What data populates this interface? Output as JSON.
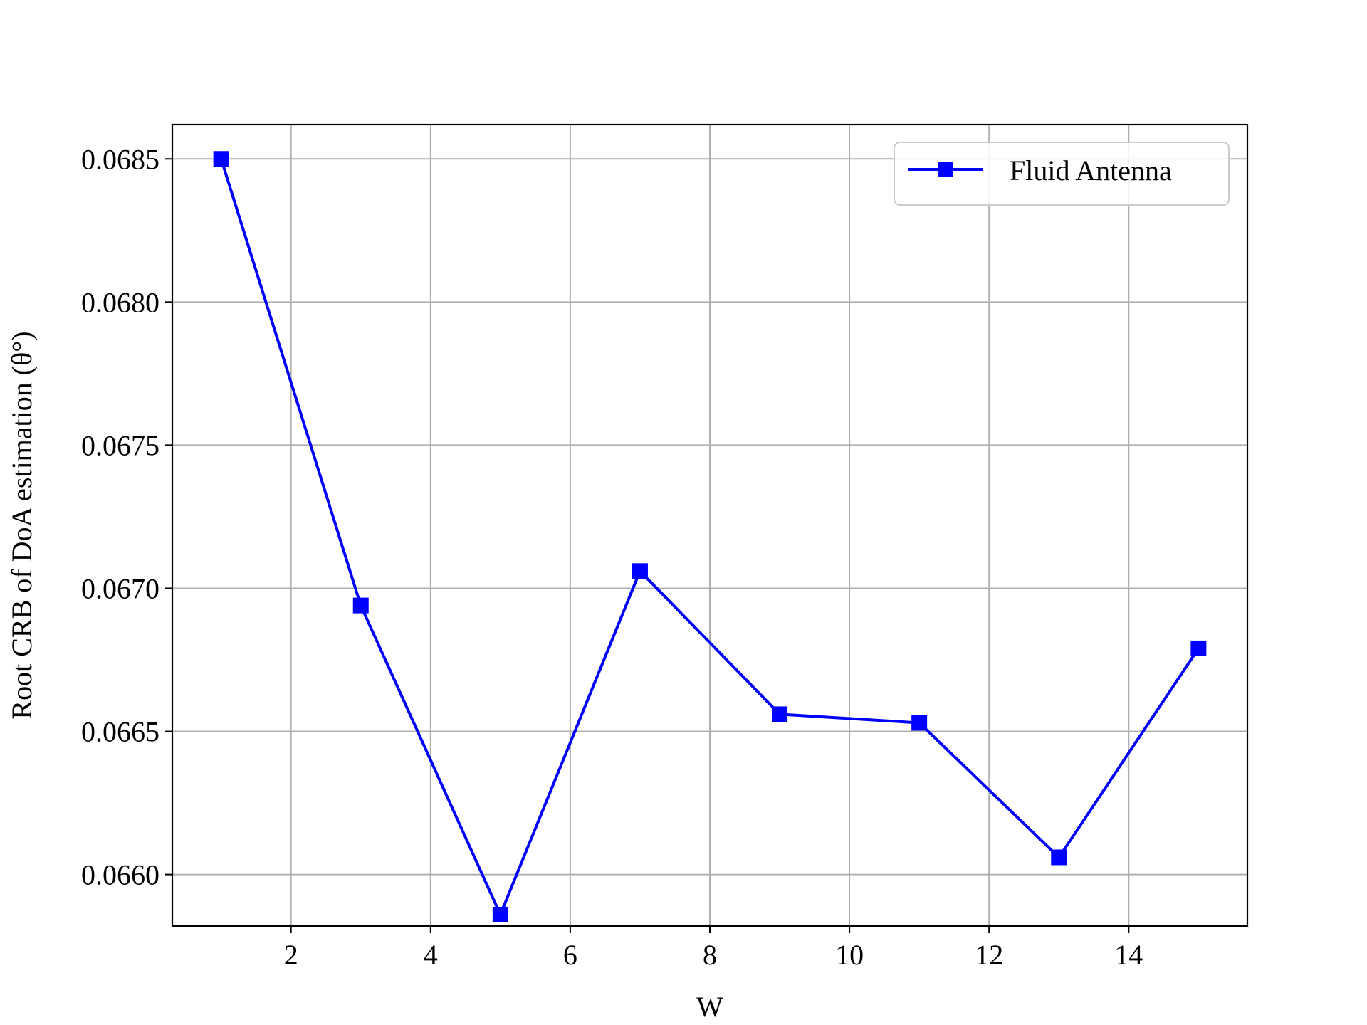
{
  "chart_data": {
    "type": "line",
    "title": "",
    "xlabel": "W",
    "ylabel": "Root CRB of DoA estimation (θ°)",
    "xlim": [
      0.3,
      15.7
    ],
    "ylim": [
      0.06582,
      0.06862
    ],
    "x_ticks": [
      2,
      4,
      6,
      8,
      10,
      12,
      14
    ],
    "x_tick_labels": [
      "2",
      "4",
      "6",
      "8",
      "10",
      "12",
      "14"
    ],
    "y_ticks": [
      0.066,
      0.0665,
      0.067,
      0.0675,
      0.068,
      0.0685
    ],
    "y_tick_labels": [
      "0.0660",
      "0.0665",
      "0.0670",
      "0.0675",
      "0.0680",
      "0.0685"
    ],
    "grid": true,
    "legend_position": "top-right",
    "series": [
      {
        "name": "Fluid Antenna",
        "color": "#0000ff",
        "marker": "square",
        "x": [
          1,
          3,
          5,
          7,
          9,
          11,
          13,
          15
        ],
        "y": [
          0.0685,
          0.06694,
          0.06586,
          0.06706,
          0.06656,
          0.06653,
          0.06606,
          0.06679
        ]
      }
    ]
  }
}
